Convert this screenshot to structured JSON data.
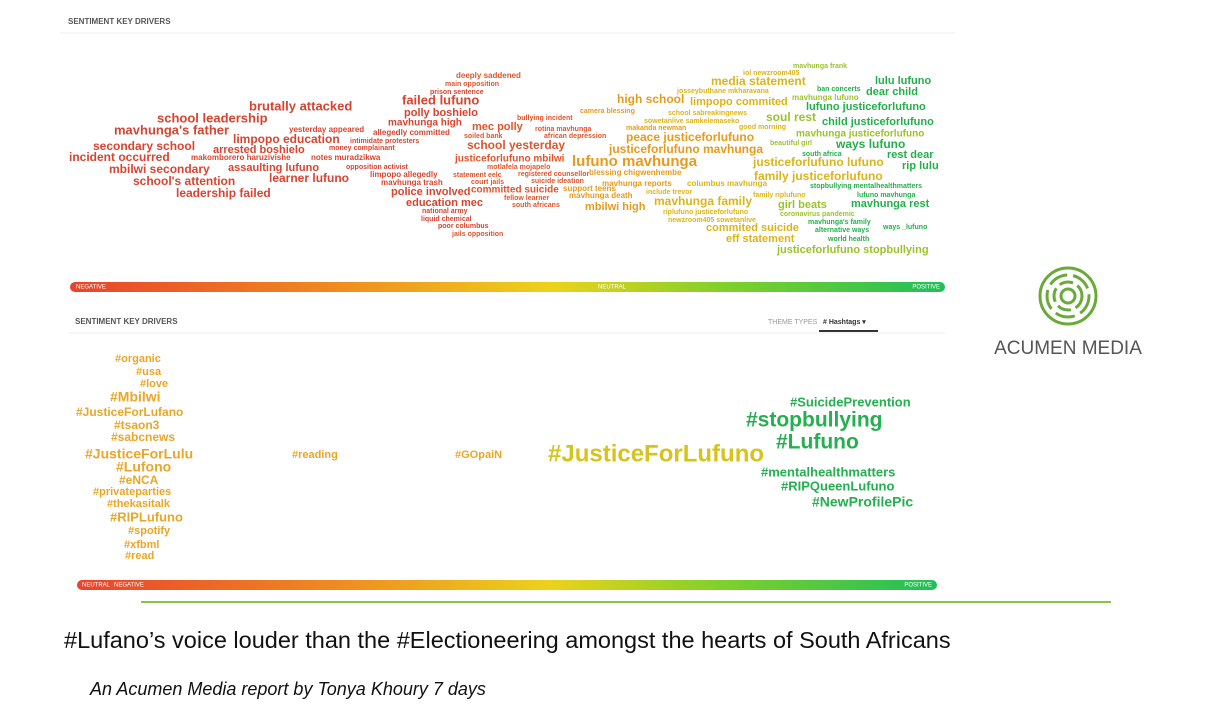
{
  "panel1": {
    "title": "SENTIMENT KEY DRIVERS",
    "words": [
      "brutally attacked",
      "school leadership",
      "mavhunga's father",
      "yesterday appeared",
      "limpopo education",
      "secondary school",
      "arrested boshielo",
      "notes muradzikwa",
      "makomborero haruzivishe",
      "incident occurred",
      "assaulting lufuno",
      "mbilwi secondary",
      "learner lufuno",
      "school's attention",
      "leadership failed",
      "money complainant",
      "intimidate protesters",
      "allegedly committed",
      "mavhunga high",
      "polly boshielo",
      "failed lufuno",
      "prison sentence",
      "main opposition",
      "deeply saddened",
      "opposition activist",
      "limpopo allegedly",
      "mavhunga trash",
      "police involved",
      "education mec",
      "national army",
      "liquid chemical",
      "poor columbus",
      "jails opposition",
      "mec polly",
      "soiled bank",
      "justiceforlufuno mbilwi",
      "school yesterday",
      "statement eelc",
      "court jails",
      "committed suicide",
      "motlafela mojapelo",
      "bullying incident",
      "rotina mavhunga",
      "african depression",
      "registered counsellor",
      "suicide ideation",
      "fellow learner",
      "south africans",
      "support teens",
      "mavhunga death",
      "lufuno mavhunga",
      "blessing chigwenhembe",
      "mavhunga reports",
      "mbilwi high",
      "camera blessing",
      "high school",
      "limpopo commited",
      "media statement",
      "iol newzroom405",
      "mavhunga frank",
      "josseybuthane mkharavana",
      "ban concerts",
      "school sabreakingnews",
      "sowetanlive samkelemaseko",
      "makanda newman",
      "good morning",
      "peace justiceforlufuno",
      "justiceforlufuno mavhunga",
      "soul rest",
      "mavhunga lufuno",
      "lulu lufuno",
      "dear child",
      "lufuno justiceforlufuno",
      "child justiceforlufuno",
      "mavhunga justiceforlufuno",
      "beautiful girl",
      "ways lufuno",
      "south africa",
      "rest dear",
      "justiceforlufuno lufuno",
      "rip lulu",
      "family justiceforlufuno",
      "columbus mavhunga",
      "stopbullying mentalhealthmatters",
      "include trevor",
      "family riplufuno",
      "mavhunga family",
      "lufuno mavhunga",
      "girl beats",
      "mavhunga rest",
      "riplufuno justiceforlufuno",
      "coronavirus pandemic",
      "newzroom405 sowetanlive",
      "mavhunga's family",
      "commited suicide",
      "alternative ways",
      "ways _lufuno",
      "eff statement",
      "world health",
      "justiceforlufuno stopbullying"
    ],
    "scale": [
      "NEGATIVE",
      "NEUTRAL",
      "POSITIVE"
    ]
  },
  "panel2": {
    "title": "SENTIMENT KEY DRIVERS",
    "theme_types": "THEME TYPES",
    "dropdown": "# Hashtags ▾",
    "words": [
      "#organic",
      "#usa",
      "#love",
      "#Mbilwi",
      "#JusticeForLufano",
      "#tsaon3",
      "#sabcnews",
      "#JusticeForLulu",
      "#Lufono",
      "#eNCA",
      "#privateparties",
      "#thekasitalk",
      "#RIPLufuno",
      "#spotify",
      "#xfbml",
      "#read",
      "#reading",
      "#GOpaiN",
      "#JusticeForLufuno",
      "#SuicidePrevention",
      "#stopbullying",
      "#Lufuno",
      "#mentalhealthmatters",
      "#RIPQueenLufuno",
      "#NewProfilePic"
    ],
    "scale": [
      "NEUTRAL",
      "NEGATIVE",
      "POSITIVE"
    ]
  },
  "logo": "ACUMEN MEDIA",
  "headline": "#Lufano’s voice louder than the #Electioneering amongst the hearts of South Africans",
  "byline": "An Acumen Media report by Tonya Khoury 7 days"
}
